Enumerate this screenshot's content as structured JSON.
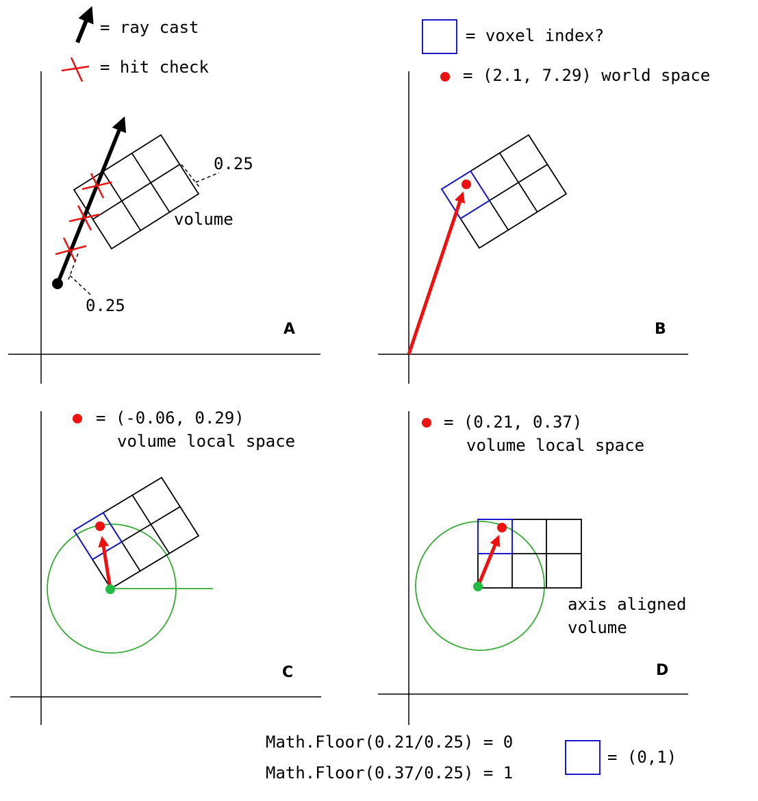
{
  "legend": {
    "ray_cast": "= ray cast",
    "hit_check": "= hit check",
    "voxel_index": "= voxel index?",
    "world_space": "= (2.1, 7.29) world space"
  },
  "panel_a": {
    "letter": "A",
    "spacing_top": "0.25",
    "spacing_bottom": "0.25",
    "volume_label": "volume"
  },
  "panel_b": {
    "letter": "B"
  },
  "panel_c": {
    "letter": "C",
    "point_label_1": "= (-0.06, 0.29)",
    "point_label_2": "volume local space"
  },
  "panel_d": {
    "letter": "D",
    "point_label_1": "= (0.21, 0.37)",
    "point_label_2": "volume local space",
    "aligned_label_1": "axis aligned",
    "aligned_label_2": "volume"
  },
  "formulas": {
    "line1": "Math.Floor(0.21/0.25) = 0",
    "line2": "Math.Floor(0.37/0.25) = 1",
    "result": "= (0,1)"
  },
  "colors": {
    "ray": "#000000",
    "hit": "#ee1111",
    "voxel": "#1a1acc",
    "point": "#ee1111",
    "origin": "#22bb44",
    "circle": "#33aa33"
  }
}
